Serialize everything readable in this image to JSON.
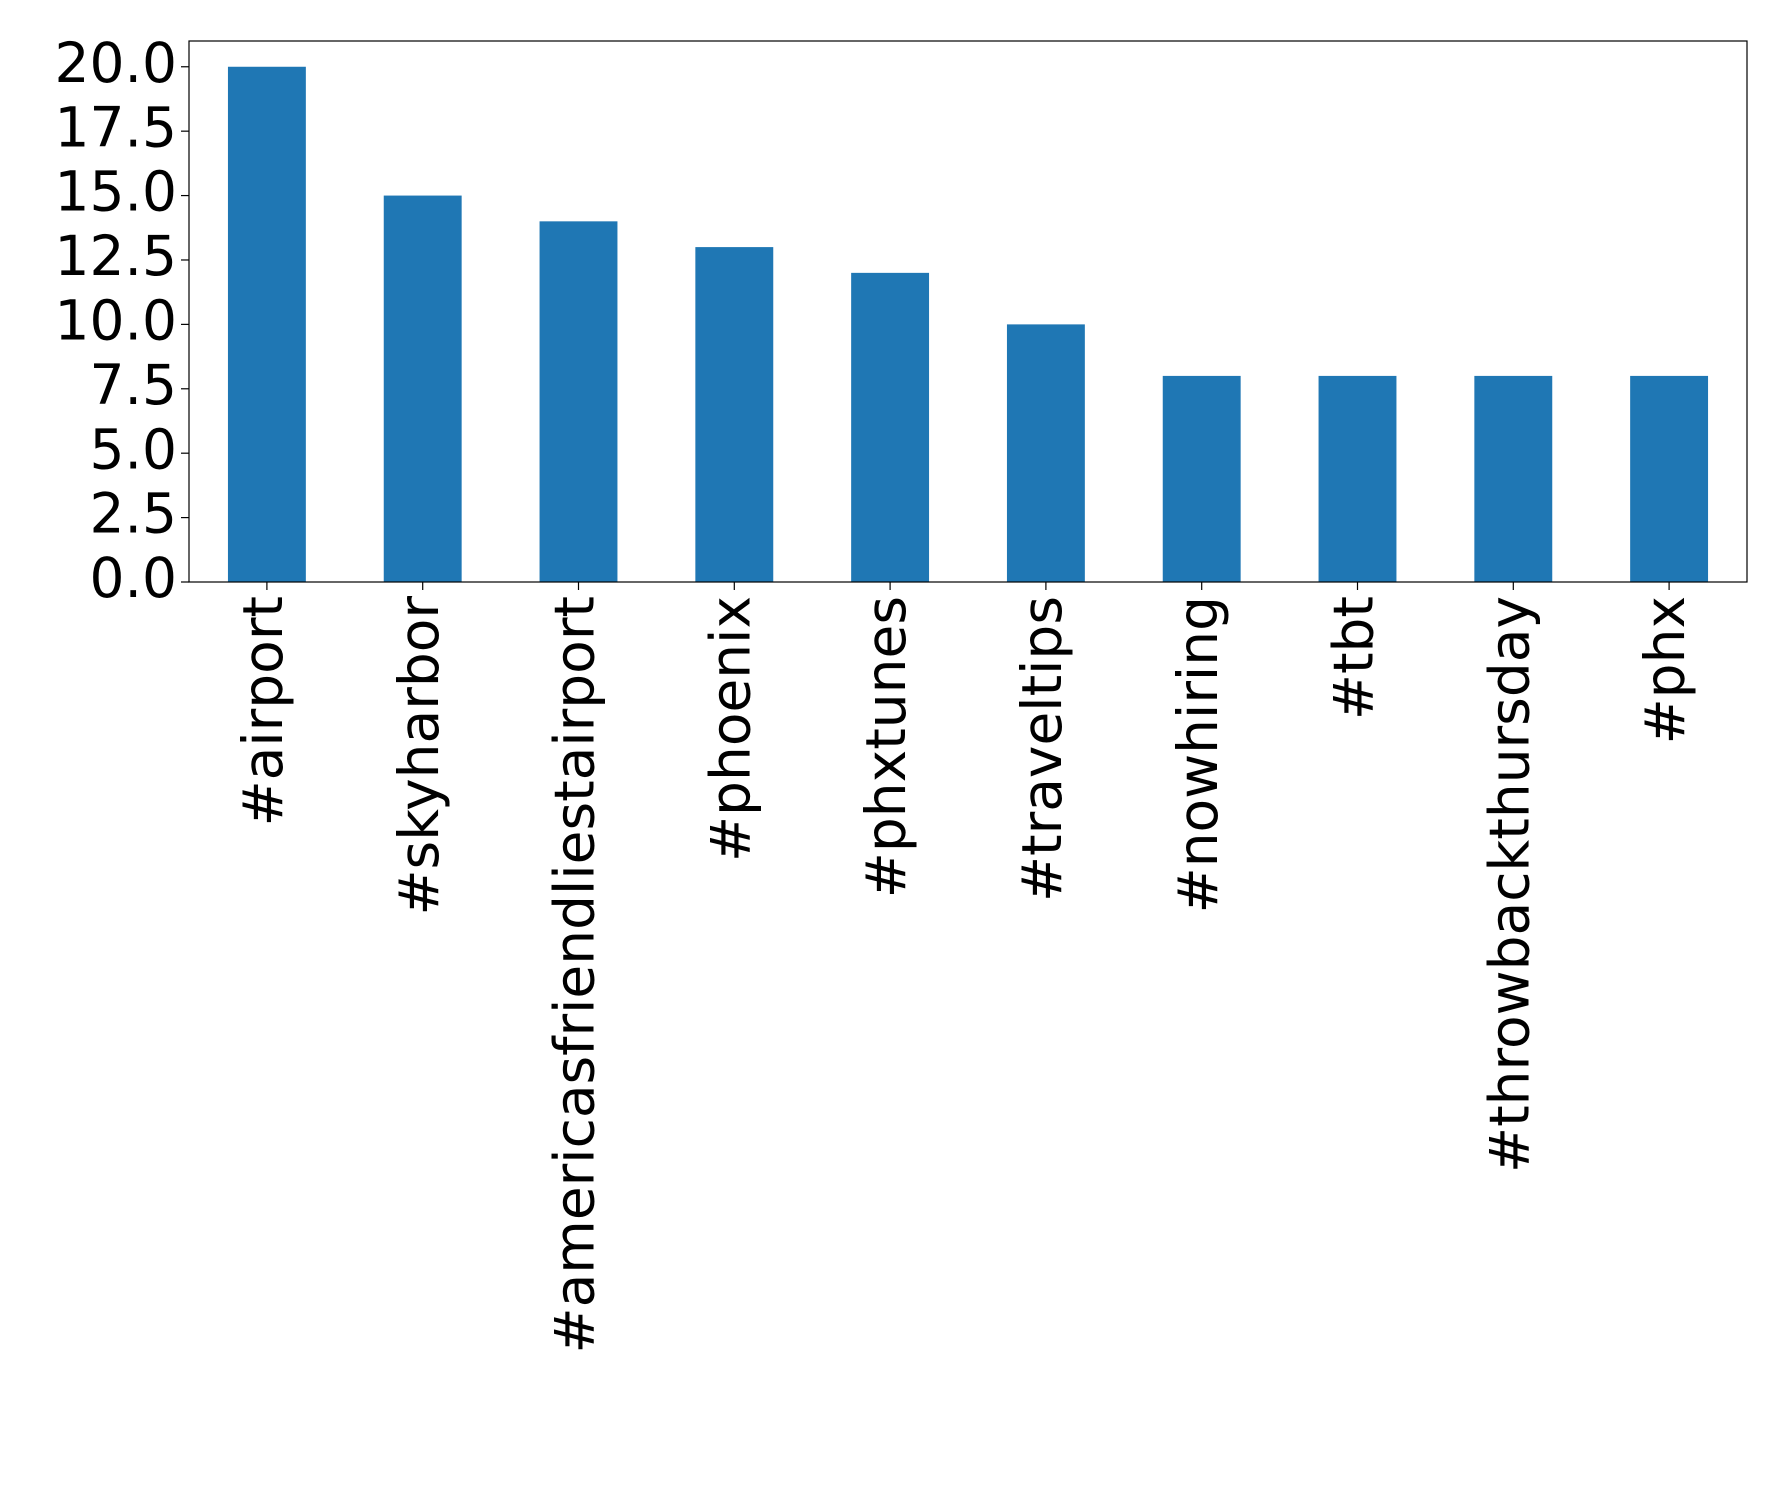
{
  "chart_data": {
    "type": "bar",
    "categories": [
      "#airport",
      "#skyharbor",
      "#americasfriendliestairport",
      "#phoenix",
      "#phxtunes",
      "#traveltips",
      "#nowhiring",
      "#tbt",
      "#throwbackthursday",
      "#phx"
    ],
    "values": [
      20,
      15,
      14,
      13,
      12,
      10,
      8,
      8,
      8,
      8
    ],
    "color": "#1f77b4",
    "ylim": [
      0,
      21
    ],
    "yticks": [
      {
        "value": 0,
        "label": "0.0"
      },
      2.5,
      {
        "value": 5,
        "label": "5.0"
      },
      7.5,
      {
        "value": 10,
        "label": "10.0"
      },
      12.5,
      {
        "value": 15,
        "label": "15.0"
      },
      17.5,
      {
        "value": 20,
        "label": "20.0"
      }
    ],
    "grid": false
  }
}
